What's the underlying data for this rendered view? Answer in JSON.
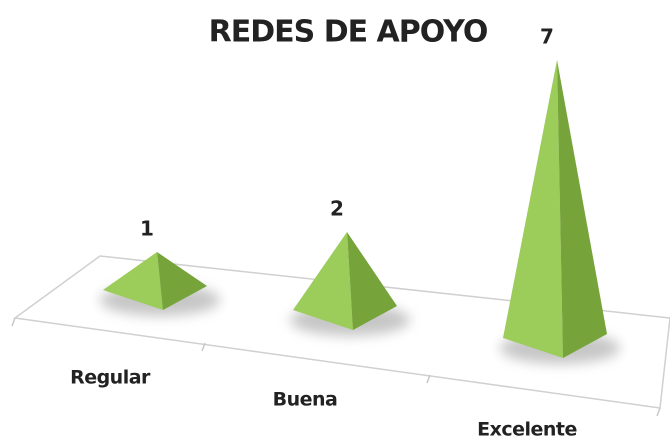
{
  "chart_data": {
    "type": "pyramid",
    "title": "REDES DE APOYO",
    "categories": [
      "Regular",
      "Buena",
      "Excelente"
    ],
    "values": [
      1,
      2,
      7
    ],
    "color": "#9ccc5a"
  }
}
